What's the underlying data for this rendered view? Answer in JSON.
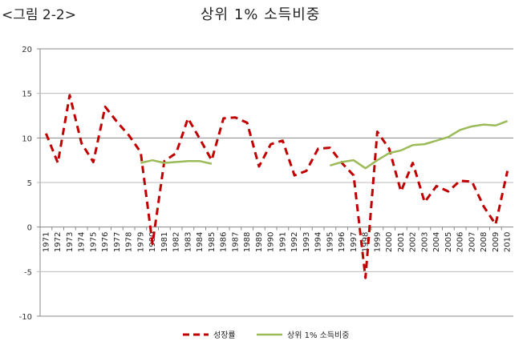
{
  "figure_label": "<그림 2-2>",
  "chart_data": {
    "type": "line",
    "title": "상위 1% 소득비중",
    "xlabel": "",
    "ylabel": "",
    "ylim": [
      -10,
      20
    ],
    "yticks": [
      -10,
      -5,
      0,
      5,
      10,
      15,
      20
    ],
    "grid": true,
    "legend_position": "bottom",
    "categories": [
      "1971",
      "1972",
      "1973",
      "1974",
      "1975",
      "1976",
      "1977",
      "1978",
      "1979",
      "1980",
      "1981",
      "1982",
      "1983",
      "1984",
      "1985",
      "1986",
      "1987",
      "1988",
      "1989",
      "1990",
      "1991",
      "1992",
      "1993",
      "1994",
      "1995",
      "1996",
      "1997",
      "1998",
      "1999",
      "2000",
      "2001",
      "2002",
      "2003",
      "2004",
      "2005",
      "2006",
      "2007",
      "2008",
      "2009",
      "2010"
    ],
    "series": [
      {
        "name": "성장률",
        "color": "#c00000",
        "dash": true,
        "values": [
          10.5,
          7.2,
          14.8,
          9.4,
          7.3,
          13.5,
          11.8,
          10.3,
          8.4,
          -1.9,
          7.4,
          8.3,
          12.2,
          9.9,
          7.5,
          12.2,
          12.3,
          11.7,
          6.8,
          9.3,
          9.7,
          5.8,
          6.3,
          8.8,
          8.9,
          7.2,
          5.8,
          -5.7,
          10.7,
          8.8,
          4.0,
          7.2,
          2.8,
          4.6,
          4.0,
          5.2,
          5.1,
          2.3,
          0.3,
          6.3
        ]
      },
      {
        "name": "상위 1% 소득비중",
        "color": "#9bbb59",
        "dash": false,
        "values": [
          null,
          null,
          null,
          null,
          null,
          null,
          null,
          null,
          7.2,
          7.5,
          7.2,
          7.3,
          7.4,
          7.4,
          7.1,
          null,
          null,
          null,
          null,
          null,
          null,
          null,
          null,
          null,
          6.9,
          7.3,
          7.5,
          6.6,
          7.5,
          8.3,
          8.6,
          9.2,
          9.3,
          9.7,
          10.1,
          10.9,
          11.3,
          11.5,
          11.4,
          11.9
        ]
      }
    ]
  }
}
